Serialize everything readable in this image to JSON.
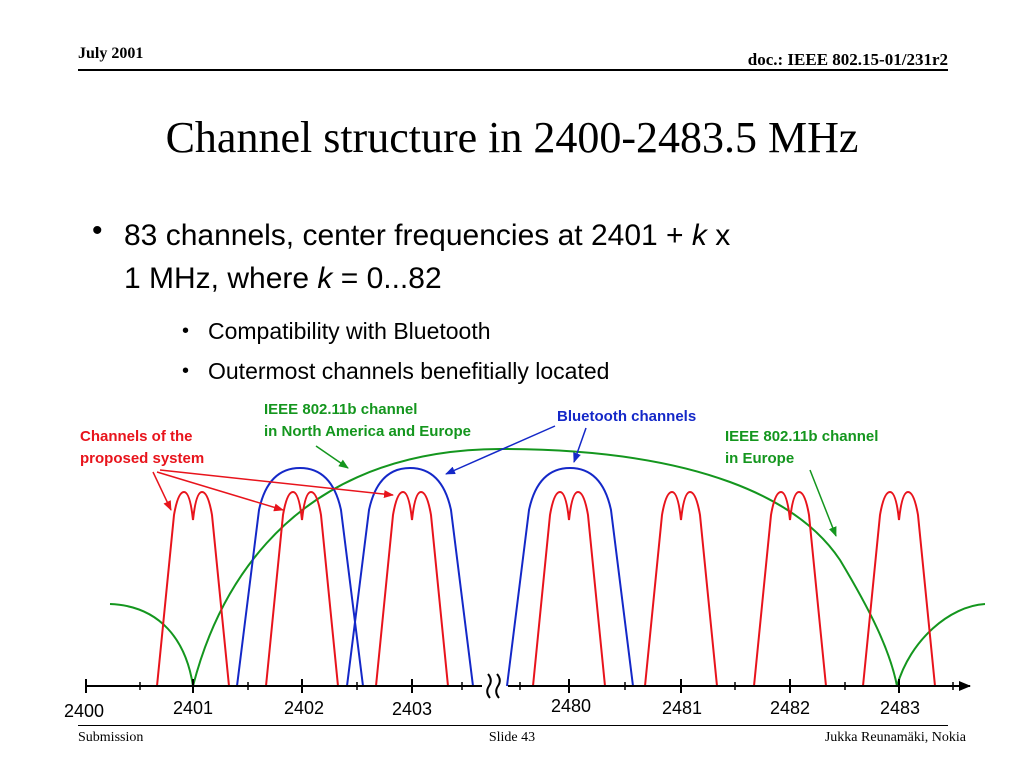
{
  "header": {
    "date": "July 2001",
    "doc": "doc.: IEEE 802.15-01/231r2"
  },
  "title": "Channel structure in 2400-2483.5 MHz",
  "bullets": {
    "main_line1_a": "83 channels, center frequencies at 2401 + ",
    "main_line1_k": "k",
    "main_line1_b": " x",
    "main_line2_a": "1 MHz, where ",
    "main_line2_k": "k",
    "main_line2_b": " = 0...82",
    "sub": [
      "Compatibility with Bluetooth",
      "Outermost channels benefitially located"
    ]
  },
  "annotations": {
    "proposed": [
      "Channels of the",
      "proposed system"
    ],
    "ieee_na": [
      "IEEE 802.11b channel",
      "in North America and Europe"
    ],
    "bluetooth": "Bluetooth channels",
    "ieee_eu": [
      "IEEE 802.11b channel",
      "in Europe"
    ]
  },
  "colors": {
    "proposed": "#e8141c",
    "bluetooth": "#1428c8",
    "ieee": "#14961e"
  },
  "axis_labels": [
    "2400",
    "2401",
    "2402",
    "2403",
    "2480",
    "2481",
    "2482",
    "2483"
  ],
  "footer": {
    "left": "Submission",
    "center": "Slide 43",
    "right": "Jukka Reunamäki, Nokia"
  }
}
